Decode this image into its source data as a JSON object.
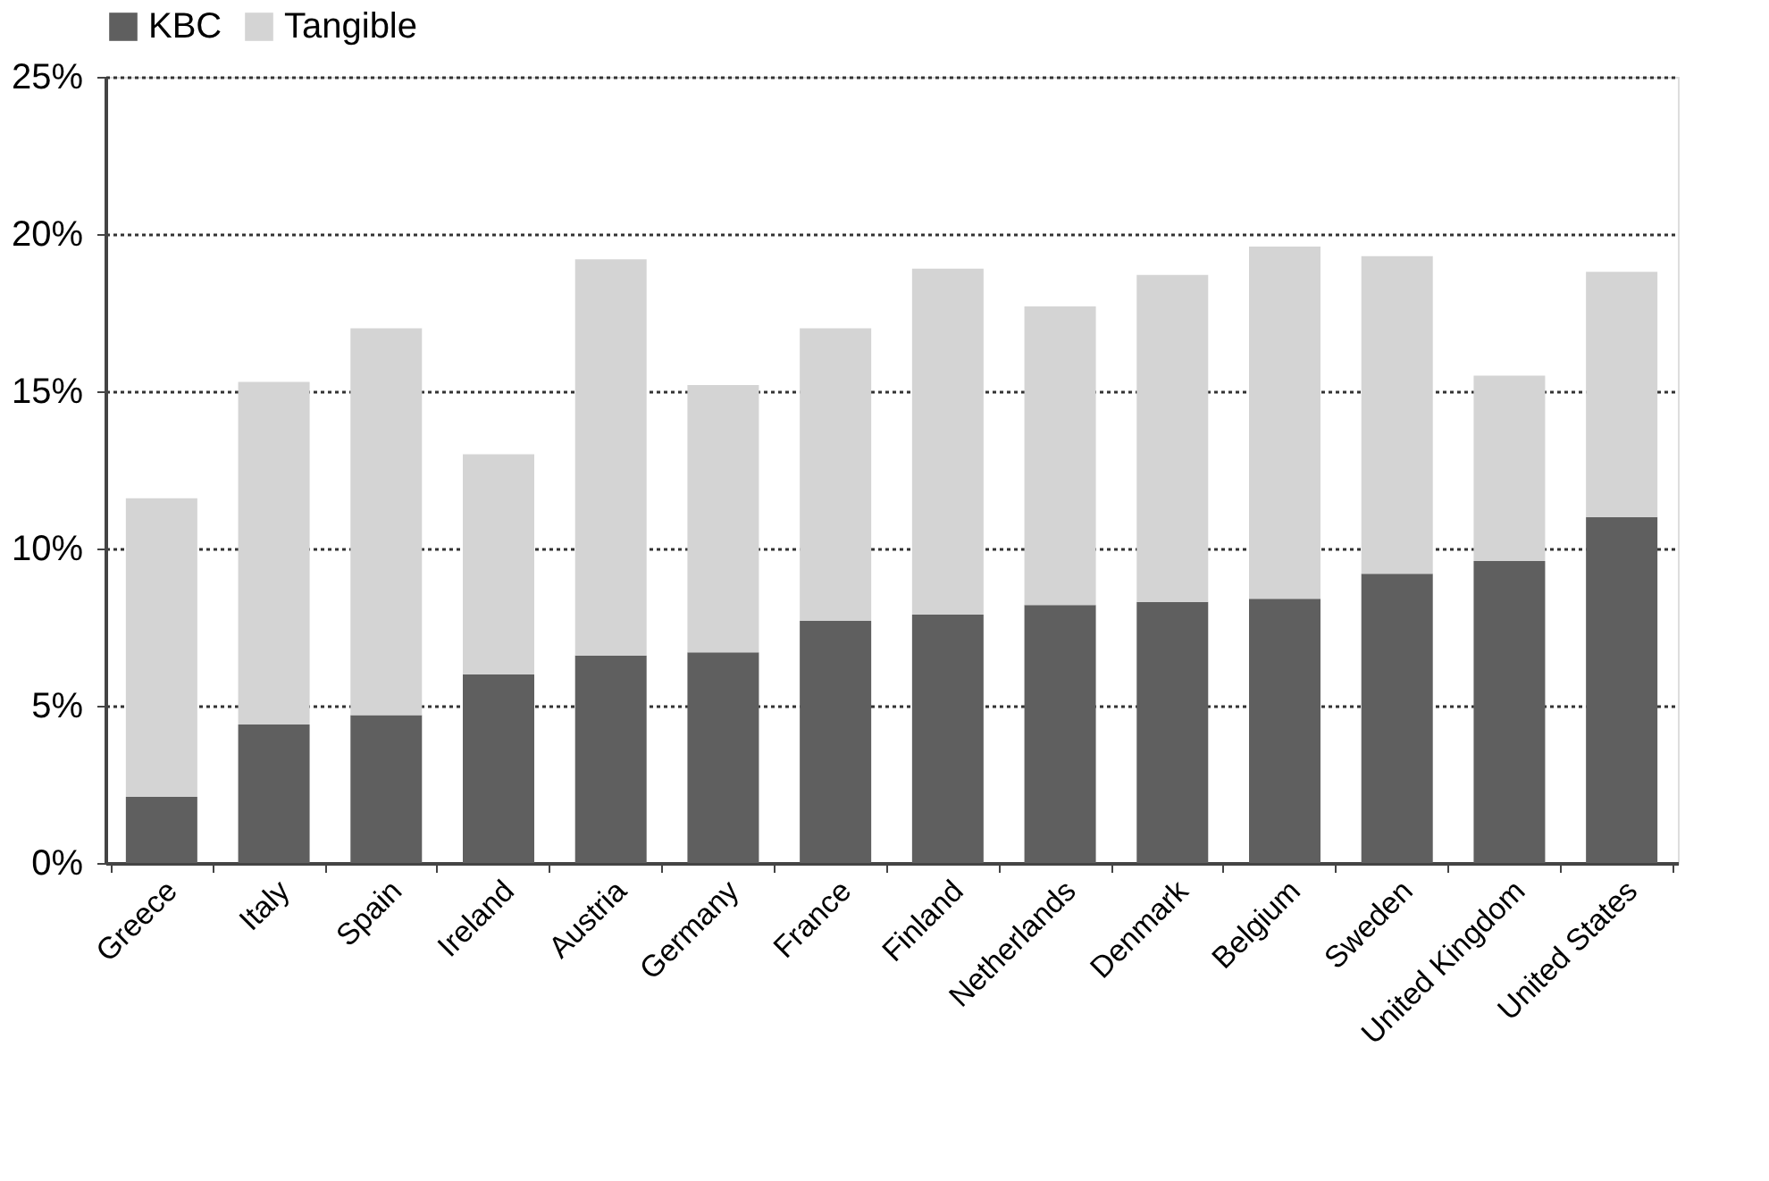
{
  "chart_data": {
    "type": "bar",
    "stacked": true,
    "categories": [
      "Greece",
      "Italy",
      "Spain",
      "Ireland",
      "Austria",
      "Germany",
      "France",
      "Finland",
      "Netherlands",
      "Denmark",
      "Belgium",
      "Sweden",
      "United Kingdom",
      "United States"
    ],
    "series": [
      {
        "name": "KBC",
        "color": "#5f5f5f",
        "values": [
          2.1,
          4.4,
          4.7,
          6.0,
          6.6,
          6.7,
          7.7,
          7.9,
          8.2,
          8.3,
          8.4,
          9.2,
          9.6,
          11.0
        ]
      },
      {
        "name": "Tangible",
        "color": "#d4d4d4",
        "values": [
          9.5,
          10.9,
          12.3,
          7.0,
          12.6,
          8.5,
          9.3,
          11.0,
          9.5,
          10.4,
          11.2,
          10.1,
          5.9,
          7.8
        ]
      }
    ],
    "ylim": [
      0,
      25
    ],
    "yticks": [
      {
        "value": 0,
        "label": "0%"
      },
      {
        "value": 5,
        "label": "5%"
      },
      {
        "value": 10,
        "label": "10%"
      },
      {
        "value": 15,
        "label": "15%"
      },
      {
        "value": 20,
        "label": "20%"
      },
      {
        "value": 25,
        "label": "25%"
      }
    ],
    "grid": "y",
    "legend": "top"
  }
}
